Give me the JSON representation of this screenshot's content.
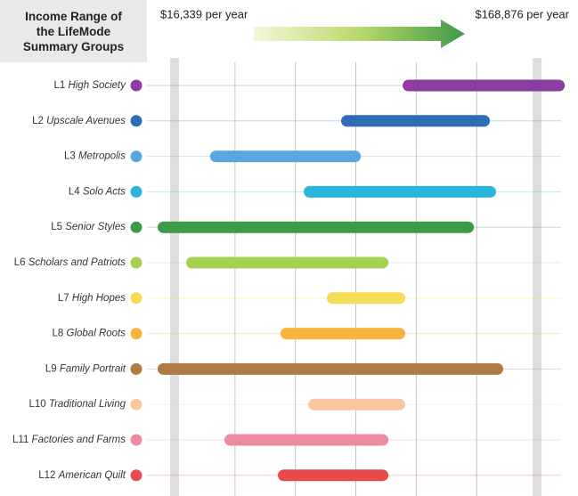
{
  "chart_data": {
    "type": "range_bar",
    "title": "Income Range of the LifeMode Summary Groups",
    "categories": [
      "L1 High Society",
      "L2 Upscale Avenues",
      "L3 Metropolis",
      "L4 Solo Acts",
      "L5 Senior Styles",
      "L6 Scholars and Patriots",
      "L7 High Hopes",
      "L8 Global Roots",
      "L9 Family Portrait",
      "L10 Traditional Living",
      "L11 Factories and Farms",
      "L12 American Quilt"
    ],
    "starts": [
      112300,
      86400,
      31300,
      70700,
      9200,
      21200,
      80400,
      60900,
      9200,
      72600,
      37300,
      59800
    ],
    "ends": [
      180500,
      149000,
      94700,
      151600,
      142300,
      106300,
      113400,
      113400,
      154600,
      113400,
      106300,
      106300
    ],
    "colors": [
      "#8e3ba6",
      "#2f6cb6",
      "#5aa6df",
      "#2ab6dc",
      "#3f9a48",
      "#a6d052",
      "#f5dc54",
      "#f7b33c",
      "#b07a45",
      "#f8c7a2",
      "#ee8aa0",
      "#e94b4d"
    ],
    "xlim": [
      6600,
      182700
    ],
    "xticks": [
      {
        "value": 16339,
        "label": "$16,339 per year"
      },
      {
        "value": 168876,
        "label": "$168,876 per year"
      }
    ]
  }
}
